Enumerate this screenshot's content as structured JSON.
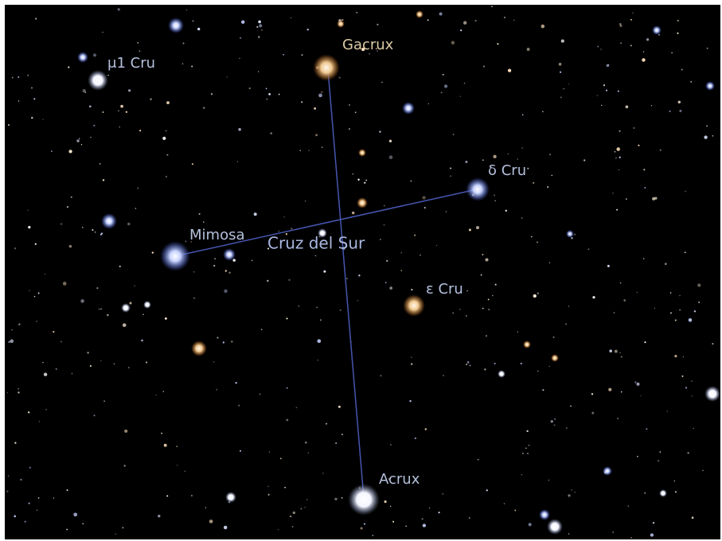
{
  "constellation": {
    "name": "Cruz del Sur"
  },
  "stars": [
    {
      "label": "Gacrux"
    },
    {
      "label": "μ1 Cru"
    },
    {
      "label": "δ Cru"
    },
    {
      "label": "Mimosa"
    },
    {
      "label": "ε Cru"
    },
    {
      "label": "Acrux"
    }
  ]
}
